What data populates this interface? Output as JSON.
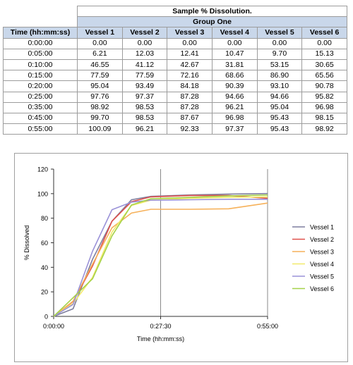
{
  "table": {
    "title": "Sample % Dissolution.",
    "group": "Group One",
    "time_header": "Time (hh:mm:ss)",
    "columns": [
      "Vessel 1",
      "Vessel 2",
      "Vessel 3",
      "Vessel 4",
      "Vessel 5",
      "Vessel 6"
    ],
    "rows": [
      {
        "time": "0:00:00",
        "values": [
          "0.00",
          "0.00",
          "0.00",
          "0.00",
          "0.00",
          "0.00"
        ]
      },
      {
        "time": "0:05:00",
        "values": [
          "6.21",
          "12.03",
          "12.41",
          "10.47",
          "9.70",
          "15.13"
        ]
      },
      {
        "time": "0:10:00",
        "values": [
          "46.55",
          "41.12",
          "42.67",
          "31.81",
          "53.15",
          "30.65"
        ]
      },
      {
        "time": "0:15:00",
        "values": [
          "77.59",
          "77.59",
          "72.16",
          "68.66",
          "86.90",
          "65.56"
        ]
      },
      {
        "time": "0:20:00",
        "values": [
          "95.04",
          "93.49",
          "84.18",
          "90.39",
          "93.10",
          "90.78"
        ]
      },
      {
        "time": "0:25:00",
        "values": [
          "97.76",
          "97.37",
          "87.28",
          "94.66",
          "94.66",
          "95.82"
        ]
      },
      {
        "time": "0:35:00",
        "values": [
          "98.92",
          "98.53",
          "87.28",
          "96.21",
          "95.04",
          "96.98"
        ]
      },
      {
        "time": "0:45:00",
        "values": [
          "99.70",
          "98.53",
          "87.67",
          "96.98",
          "95.43",
          "98.15"
        ]
      },
      {
        "time": "0:55:00",
        "values": [
          "100.09",
          "96.21",
          "92.33",
          "97.37",
          "95.43",
          "98.92"
        ]
      }
    ]
  },
  "chart_data": {
    "type": "line",
    "xlabel": "Time (hh:mm:ss)",
    "ylabel": "% Dissolved",
    "x_minutes": [
      0,
      5,
      10,
      15,
      20,
      25,
      35,
      45,
      55
    ],
    "xlim": [
      0,
      55
    ],
    "ylim": [
      0,
      120
    ],
    "y_ticks": [
      0,
      20,
      40,
      60,
      80,
      100,
      120
    ],
    "x_ticks": [
      {
        "value": 0,
        "label": "0:00:00"
      },
      {
        "value": 27.5,
        "label": "0:27:30"
      },
      {
        "value": 55,
        "label": "0:55:00"
      }
    ],
    "grid": "vertical",
    "legend_position": "right",
    "series": [
      {
        "name": "Vessel 1",
        "color": "#7f7f9f",
        "values": [
          0.0,
          6.21,
          46.55,
          77.59,
          95.04,
          97.76,
          98.92,
          99.7,
          100.09
        ]
      },
      {
        "name": "Vessel 2",
        "color": "#e0504a",
        "values": [
          0.0,
          12.03,
          41.12,
          77.59,
          93.49,
          97.37,
          98.53,
          98.53,
          96.21
        ]
      },
      {
        "name": "Vessel 3",
        "color": "#f6b15a",
        "values": [
          0.0,
          12.41,
          42.67,
          72.16,
          84.18,
          87.28,
          87.28,
          87.67,
          92.33
        ]
      },
      {
        "name": "Vessel 4",
        "color": "#f2ea6a",
        "values": [
          0.0,
          10.47,
          31.81,
          68.66,
          90.39,
          94.66,
          96.21,
          96.98,
          97.37
        ]
      },
      {
        "name": "Vessel 5",
        "color": "#9a92d8",
        "values": [
          0.0,
          9.7,
          53.15,
          86.9,
          93.1,
          94.66,
          95.04,
          95.43,
          95.43
        ]
      },
      {
        "name": "Vessel 6",
        "color": "#a6d24a",
        "values": [
          0.0,
          15.13,
          30.65,
          65.56,
          90.78,
          95.82,
          96.98,
          98.15,
          98.92
        ]
      }
    ]
  }
}
